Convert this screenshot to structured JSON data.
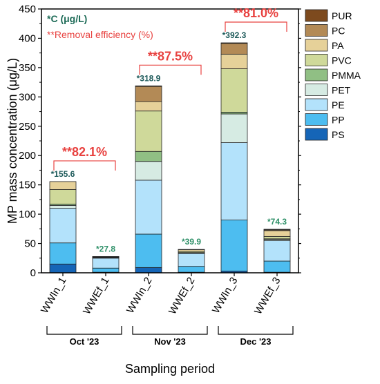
{
  "chart_data": {
    "type": "bar",
    "stacked": true,
    "xlabel": "Sampling period",
    "ylabel": "MP mass concentration (μg/L)",
    "ylim": [
      0,
      450
    ],
    "yticks": [
      "0",
      "50",
      "100",
      "150",
      "200",
      "250",
      "300",
      "350",
      "400",
      "450"
    ],
    "categories": [
      "WWIn_1",
      "WWEf_1",
      "WWIn_2",
      "WWEf_2",
      "WWIn_3",
      "WWEf_3"
    ],
    "series": [
      {
        "name": "PS",
        "color": "#1565b7",
        "values": [
          15,
          1,
          9,
          1,
          3,
          1
        ]
      },
      {
        "name": "PP",
        "color": "#4dbdf0",
        "values": [
          36,
          7,
          57,
          10,
          87,
          19
        ]
      },
      {
        "name": "PE",
        "color": "#b3e2fb",
        "values": [
          59,
          17,
          92,
          22,
          132,
          35
        ]
      },
      {
        "name": "PET",
        "color": "#d6ebe3",
        "values": [
          5,
          1,
          32,
          1,
          49,
          2
        ]
      },
      {
        "name": "PMMA",
        "color": "#90bf84",
        "values": [
          2,
          0.5,
          17,
          0.5,
          3,
          1
        ]
      },
      {
        "name": "PVC",
        "color": "#cfd99a",
        "values": [
          25,
          0.5,
          69,
          2,
          74,
          4
        ]
      },
      {
        "name": "PA",
        "color": "#e6d199",
        "values": [
          13.6,
          0.6,
          16,
          3,
          25,
          10
        ]
      },
      {
        "name": "PC",
        "color": "#b38a56",
        "values": [
          0,
          0.2,
          25.9,
          0.4,
          18.3,
          1.3
        ]
      },
      {
        "name": "PUR",
        "color": "#7d4a1e",
        "values": [
          0,
          0,
          1,
          0,
          1,
          1
        ]
      }
    ],
    "totals": [
      "*155.6",
      "*27.8",
      "*318.9",
      "*39.9",
      "*392.3",
      "*74.3"
    ],
    "total_colors": [
      "#1d5a5a",
      "#2e9068",
      "#1d5a5a",
      "#2e9068",
      "#1d5a5a",
      "#2e9068"
    ],
    "groups": [
      {
        "label": "Oct '23",
        "removal": "**82.1%"
      },
      {
        "label": "Nov '23",
        "removal": "**87.5%"
      },
      {
        "label": "Dec '23",
        "removal": "**81.0%"
      }
    ],
    "notes": {
      "concentration": "*C (μg/L)",
      "removal": "**Removal efficiency (%)"
    },
    "legend_order": [
      "PUR",
      "PC",
      "PA",
      "PVC",
      "PMMA",
      "PET",
      "PE",
      "PP",
      "PS"
    ],
    "legend_position": "right"
  }
}
